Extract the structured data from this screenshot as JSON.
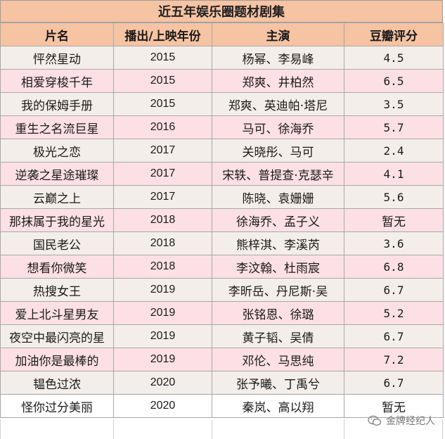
{
  "title": "近五年娱乐圈题材剧集",
  "headers": [
    "片名",
    "播出/上映年份",
    "主演",
    "豆瓣评分"
  ],
  "rows": [
    {
      "name": "怦然星动",
      "year": "2015",
      "cast": "杨幂、李易峰",
      "score": "4.5"
    },
    {
      "name": "相爱穿梭千年",
      "year": "2015",
      "cast": "郑爽、井柏然",
      "score": "6.5"
    },
    {
      "name": "我的保姆手册",
      "year": "2015",
      "cast": "郑爽、英迪帕·塔尼",
      "score": "3.5"
    },
    {
      "name": "重生之名流巨星",
      "year": "2016",
      "cast": "马可、徐海乔",
      "score": "5.7"
    },
    {
      "name": "极光之恋",
      "year": "2017",
      "cast": "关晓彤、马可",
      "score": "2.4"
    },
    {
      "name": "逆袭之星途璀璨",
      "year": "2017",
      "cast": "宋轶、普提查·克瑟辛",
      "score": "4.1"
    },
    {
      "name": "云巅之上",
      "year": "2017",
      "cast": "陈晓、袁姗姗",
      "score": "5.6"
    },
    {
      "name": "那抹属于我的星光",
      "year": "2018",
      "cast": "徐海乔、孟子义",
      "score": "暂无"
    },
    {
      "name": "国民老公",
      "year": "2018",
      "cast": "熊梓淇、李溪芮",
      "score": "3.6"
    },
    {
      "name": "想看你微笑",
      "year": "2018",
      "cast": "李汶翰、杜雨宸",
      "score": "6.8"
    },
    {
      "name": "热搜女王",
      "year": "2019",
      "cast": "李昕岳、丹尼斯·吴",
      "score": "6.7"
    },
    {
      "name": "爱上北斗星男友",
      "year": "2019",
      "cast": "张铭恩、徐璐",
      "score": "5.2"
    },
    {
      "name": "夜空中最闪亮的星",
      "year": "2019",
      "cast": "黄子韬、吴倩",
      "score": "6.7"
    },
    {
      "name": "加油你是最棒的",
      "year": "2019",
      "cast": "邓伦、马思纯",
      "score": "7.2"
    },
    {
      "name": "韫色过浓",
      "year": "2020",
      "cast": "张予曦、丁禹兮",
      "score": "6.7"
    },
    {
      "name": "怪你过分美丽",
      "year": "2020",
      "cast": "秦岚、高以翔",
      "score": "暂无"
    }
  ],
  "watermark": "金牌经纪人",
  "colors": {
    "header_bg": "#f6c3a3",
    "row_odd": "#f4eeea",
    "row_even": "#fce0e5"
  },
  "icons": {
    "watermark": "wechat-icon"
  }
}
